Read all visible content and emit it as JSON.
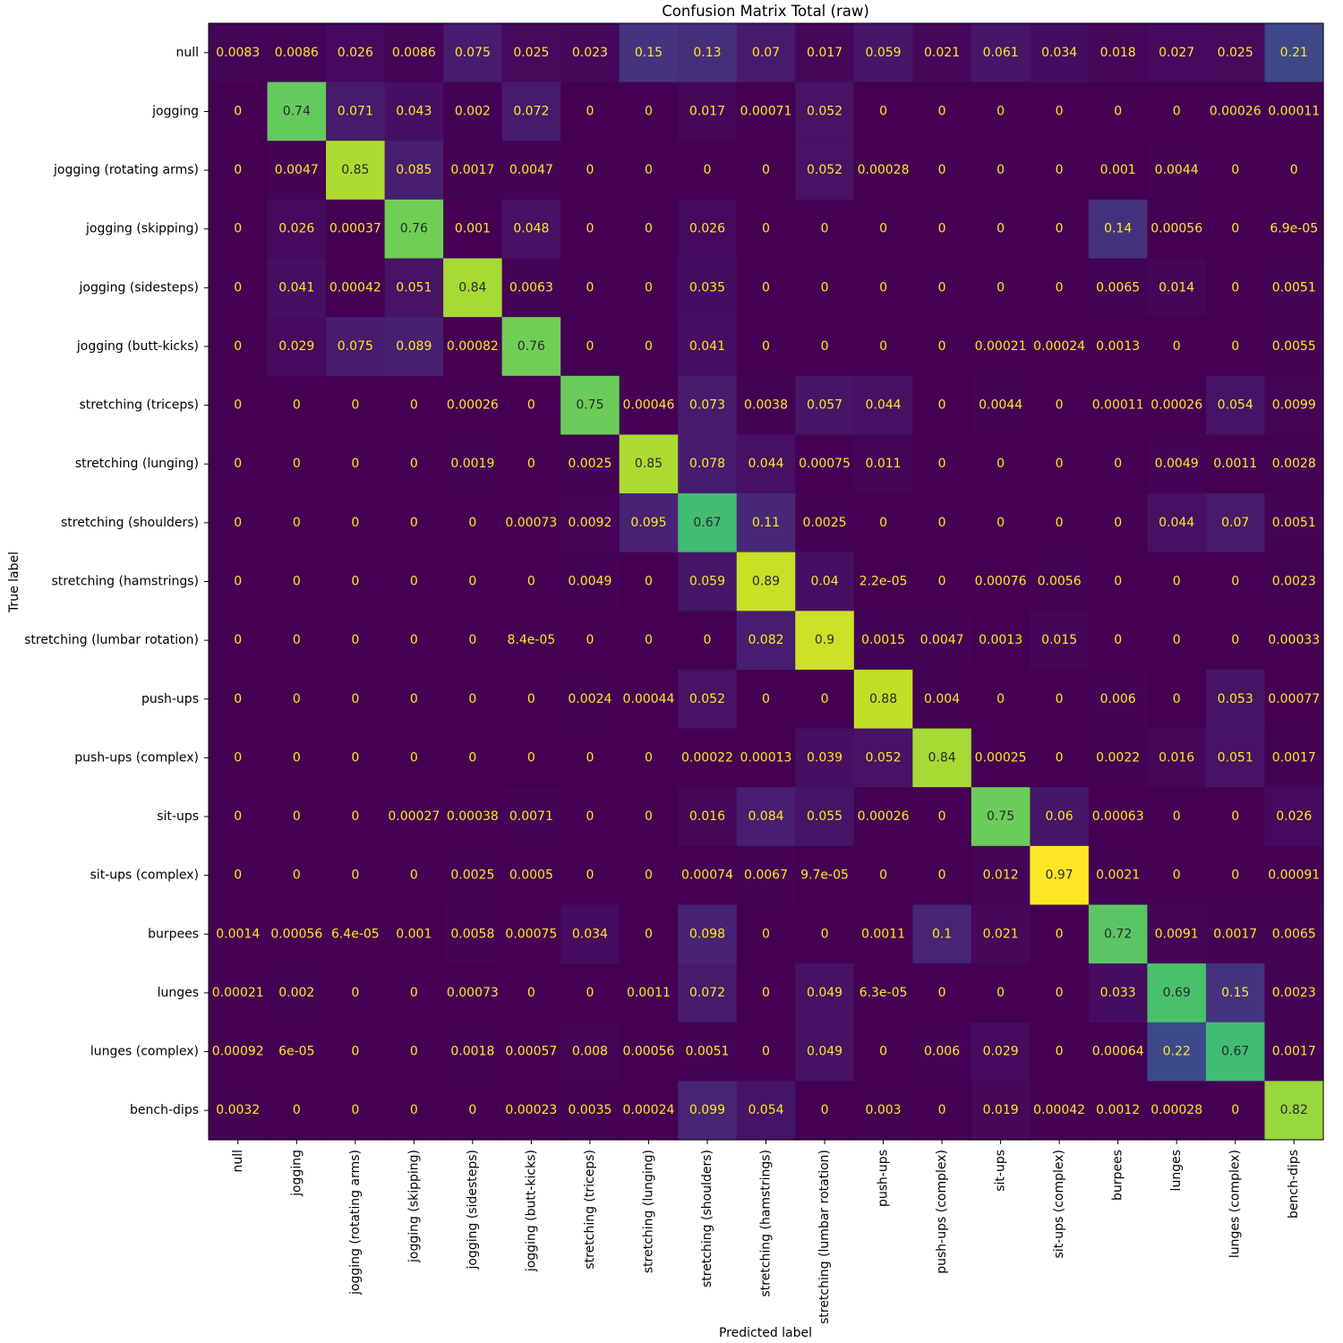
{
  "chart_data": {
    "type": "heatmap",
    "title": "Confusion Matrix Total (raw)",
    "xlabel": "Predicted label",
    "ylabel": "True label",
    "colormap": "viridis",
    "color_range": [
      0,
      0.97
    ],
    "colorbar": false,
    "grid": false,
    "text_colors": {
      "light": "#fde725",
      "dark": "#2a2a2a"
    },
    "labels": [
      "null",
      "jogging",
      "jogging (rotating arms)",
      "jogging (skipping)",
      "jogging (sidesteps)",
      "jogging (butt-kicks)",
      "stretching (triceps)",
      "stretching (lunging)",
      "stretching (shoulders)",
      "stretching (hamstrings)",
      "stretching (lumbar rotation)",
      "push-ups",
      "push-ups (complex)",
      "sit-ups",
      "sit-ups (complex)",
      "burpees",
      "lunges",
      "lunges (complex)",
      "bench-dips"
    ],
    "matrix": [
      [
        "0.0083",
        "0.0086",
        "0.026",
        "0.0086",
        "0.075",
        "0.025",
        "0.023",
        "0.15",
        "0.13",
        "0.07",
        "0.017",
        "0.059",
        "0.021",
        "0.061",
        "0.034",
        "0.018",
        "0.027",
        "0.025",
        "0.21"
      ],
      [
        "0",
        "0.74",
        "0.071",
        "0.043",
        "0.002",
        "0.072",
        "0",
        "0",
        "0.017",
        "0.00071",
        "0.052",
        "0",
        "0",
        "0",
        "0",
        "0",
        "0",
        "0.00026",
        "0.00011"
      ],
      [
        "0",
        "0.0047",
        "0.85",
        "0.085",
        "0.0017",
        "0.0047",
        "0",
        "0",
        "0",
        "0",
        "0.052",
        "0.00028",
        "0",
        "0",
        "0",
        "0.001",
        "0.0044",
        "0",
        "0"
      ],
      [
        "0",
        "0.026",
        "0.00037",
        "0.76",
        "0.001",
        "0.048",
        "0",
        "0",
        "0.026",
        "0",
        "0",
        "0",
        "0",
        "0",
        "0",
        "0.14",
        "0.00056",
        "0",
        "6.9e-05"
      ],
      [
        "0",
        "0.041",
        "0.00042",
        "0.051",
        "0.84",
        "0.0063",
        "0",
        "0",
        "0.035",
        "0",
        "0",
        "0",
        "0",
        "0",
        "0",
        "0.0065",
        "0.014",
        "0",
        "0.0051"
      ],
      [
        "0",
        "0.029",
        "0.075",
        "0.089",
        "0.00082",
        "0.76",
        "0",
        "0",
        "0.041",
        "0",
        "0",
        "0",
        "0",
        "0.00021",
        "0.00024",
        "0.0013",
        "0",
        "0",
        "0.0055"
      ],
      [
        "0",
        "0",
        "0",
        "0",
        "0.00026",
        "0",
        "0.75",
        "0.00046",
        "0.073",
        "0.0038",
        "0.057",
        "0.044",
        "0",
        "0.0044",
        "0",
        "0.00011",
        "0.00026",
        "0.054",
        "0.0099"
      ],
      [
        "0",
        "0",
        "0",
        "0",
        "0.0019",
        "0",
        "0.0025",
        "0.85",
        "0.078",
        "0.044",
        "0.00075",
        "0.011",
        "0",
        "0",
        "0",
        "0",
        "0.0049",
        "0.0011",
        "0.0028"
      ],
      [
        "0",
        "0",
        "0",
        "0",
        "0",
        "0.00073",
        "0.0092",
        "0.095",
        "0.67",
        "0.11",
        "0.0025",
        "0",
        "0",
        "0",
        "0",
        "0",
        "0.044",
        "0.07",
        "0.0051"
      ],
      [
        "0",
        "0",
        "0",
        "0",
        "0",
        "0",
        "0.0049",
        "0",
        "0.059",
        "0.89",
        "0.04",
        "2.2e-05",
        "0",
        "0.00076",
        "0.0056",
        "0",
        "0",
        "0",
        "0.0023"
      ],
      [
        "0",
        "0",
        "0",
        "0",
        "0",
        "8.4e-05",
        "0",
        "0",
        "0",
        "0.082",
        "0.9",
        "0.0015",
        "0.0047",
        "0.0013",
        "0.015",
        "0",
        "0",
        "0",
        "0.00033"
      ],
      [
        "0",
        "0",
        "0",
        "0",
        "0",
        "0",
        "0.0024",
        "0.00044",
        "0.052",
        "0",
        "0",
        "0.88",
        "0.004",
        "0",
        "0",
        "0.006",
        "0",
        "0.053",
        "0.00077"
      ],
      [
        "0",
        "0",
        "0",
        "0",
        "0",
        "0",
        "0",
        "0",
        "0.00022",
        "0.00013",
        "0.039",
        "0.052",
        "0.84",
        "0.00025",
        "0",
        "0.0022",
        "0.016",
        "0.051",
        "0.0017"
      ],
      [
        "0",
        "0",
        "0",
        "0.00027",
        "0.00038",
        "0.0071",
        "0",
        "0",
        "0.016",
        "0.084",
        "0.055",
        "0.00026",
        "0",
        "0.75",
        "0.06",
        "0.00063",
        "0",
        "0",
        "0.026"
      ],
      [
        "0",
        "0",
        "0",
        "0",
        "0.0025",
        "0.0005",
        "0",
        "0",
        "0.00074",
        "0.0067",
        "9.7e-05",
        "0",
        "0",
        "0.012",
        "0.97",
        "0.0021",
        "0",
        "0",
        "0.00091"
      ],
      [
        "0.0014",
        "0.00056",
        "6.4e-05",
        "0.001",
        "0.0058",
        "0.00075",
        "0.034",
        "0",
        "0.098",
        "0",
        "0",
        "0.0011",
        "0.1",
        "0.021",
        "0",
        "0.72",
        "0.0091",
        "0.0017",
        "0.0065"
      ],
      [
        "0.00021",
        "0.002",
        "0",
        "0",
        "0.00073",
        "0",
        "0",
        "0.0011",
        "0.072",
        "0",
        "0.049",
        "6.3e-05",
        "0",
        "0",
        "0",
        "0.033",
        "0.69",
        "0.15",
        "0.0023"
      ],
      [
        "0.00092",
        "6e-05",
        "0",
        "0",
        "0.0018",
        "0.00057",
        "0.008",
        "0.00056",
        "0.0051",
        "0",
        "0.049",
        "0",
        "0.006",
        "0.029",
        "0",
        "0.00064",
        "0.22",
        "0.67",
        "0.0017"
      ],
      [
        "0.0032",
        "0",
        "0",
        "0",
        "0",
        "0.00023",
        "0.0035",
        "0.00024",
        "0.099",
        "0.054",
        "0",
        "0.003",
        "0",
        "0.019",
        "0.00042",
        "0.0012",
        "0.00028",
        "0",
        "0.82"
      ]
    ]
  }
}
